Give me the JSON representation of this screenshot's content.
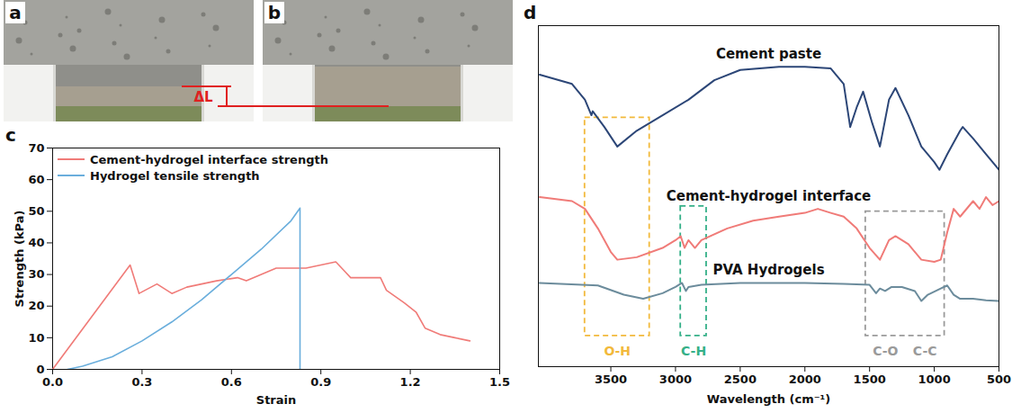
{
  "chart_data": [
    {
      "type": "line",
      "panel_label": "c",
      "x_label": "Strain",
      "y_label": "Strength (kPa)",
      "xlim": [
        0,
        1.5
      ],
      "xticks": [
        {
          "value": 0,
          "label": "0.0"
        },
        {
          "value": 0.3,
          "label": "0.3"
        },
        {
          "value": 0.6,
          "label": "0.6"
        },
        {
          "value": 0.9,
          "label": "0.9"
        },
        {
          "value": 1.2,
          "label": "1.2"
        },
        {
          "value": 1.5,
          "label": "1.5"
        }
      ],
      "ylim": [
        0,
        70
      ],
      "yticks": [
        0,
        10,
        20,
        30,
        40,
        50,
        60,
        70
      ],
      "legend": "top-left",
      "series": [
        {
          "name": "Cement-hydrogel interface strength",
          "color": "#f07b78",
          "x": [
            0,
            0.26,
            0.29,
            0.35,
            0.4,
            0.45,
            0.55,
            0.62,
            0.65,
            0.7,
            0.75,
            0.8,
            0.85,
            0.9,
            0.95,
            0.98,
            1.0,
            1.05,
            1.1,
            1.12,
            1.18,
            1.22,
            1.25,
            1.3,
            1.35,
            1.4
          ],
          "values": [
            0,
            33,
            24,
            27,
            24,
            26,
            28,
            29,
            28,
            30,
            32,
            32,
            32,
            33,
            34,
            31,
            29,
            29,
            29,
            25,
            21,
            18,
            13,
            11,
            10,
            9
          ]
        },
        {
          "name": "Hydrogel tensile strength",
          "color": "#6aaedc",
          "x": [
            0.05,
            0.1,
            0.2,
            0.3,
            0.4,
            0.5,
            0.6,
            0.7,
            0.8,
            0.83,
            0.83
          ],
          "values": [
            0,
            1,
            4,
            9,
            15,
            22,
            30,
            38,
            47,
            51,
            0
          ]
        }
      ]
    },
    {
      "type": "line",
      "panel_label": "d",
      "x_label": "Wavelength (cm⁻¹)",
      "xlim": [
        4060,
        500
      ],
      "xticks": [
        3500,
        3000,
        2500,
        2000,
        1500,
        1000,
        500
      ],
      "ylim": [
        0,
        110
      ],
      "tick_labels": "x",
      "series": [
        {
          "name": "Cement paste",
          "color": "#2c4677",
          "x": [
            4050,
            3800,
            3700,
            3650,
            3640,
            3550,
            3450,
            3300,
            3100,
            2900,
            2700,
            2500,
            2200,
            2000,
            1800,
            1700,
            1650,
            1600,
            1550,
            1480,
            1420,
            1350,
            1300,
            1200,
            1100,
            1000,
            960,
            900,
            800,
            780,
            700,
            600,
            500
          ],
          "values": [
            94.2,
            91.2,
            86.1,
            81.1,
            82.4,
            77.3,
            71.0,
            76.1,
            81.1,
            86.1,
            92.4,
            95.7,
            96.7,
            96.7,
            96.2,
            91.2,
            77.3,
            83.6,
            88.7,
            78.6,
            71.0,
            86.1,
            89.9,
            81.1,
            71.0,
            66.0,
            63.5,
            68.5,
            76.1,
            77.3,
            73.6,
            68.5,
            63.5
          ]
        },
        {
          "name": "Cement-hydrogel interface",
          "color": "#f07b78",
          "x": [
            4050,
            3800,
            3700,
            3600,
            3500,
            3450,
            3300,
            3100,
            3000,
            2960,
            2930,
            2900,
            2850,
            2800,
            2600,
            2400,
            2200,
            2000,
            1900,
            1800,
            1700,
            1600,
            1500,
            1420,
            1350,
            1300,
            1200,
            1100,
            1000,
            950,
            900,
            850,
            800,
            700,
            650,
            600,
            550,
            500
          ],
          "values": [
            54.7,
            53.4,
            50.9,
            44.6,
            37.0,
            34.5,
            35.3,
            38.3,
            40.8,
            42.1,
            38.3,
            40.8,
            38.3,
            40.8,
            44.6,
            47.1,
            48.4,
            49.6,
            50.9,
            49.6,
            48.4,
            44.6,
            38.3,
            34.5,
            40.8,
            42.1,
            39.5,
            34.5,
            33.8,
            34.5,
            43.3,
            50.9,
            48.4,
            53.4,
            50.9,
            54.7,
            52.1,
            53.4
          ]
        },
        {
          "name": "PVA Hydrogels",
          "color": "#6c8c9c",
          "x": [
            4050,
            3600,
            3400,
            3250,
            3100,
            3000,
            2950,
            2920,
            2900,
            2800,
            2500,
            2000,
            1700,
            1500,
            1450,
            1420,
            1380,
            1330,
            1250,
            1150,
            1100,
            1050,
            950,
            900,
            850,
            800,
            700,
            600,
            500
          ],
          "values": [
            27.0,
            26.2,
            23.2,
            21.9,
            23.7,
            25.7,
            27.0,
            24.4,
            25.7,
            26.4,
            27.0,
            27.0,
            26.7,
            26.4,
            23.7,
            25.2,
            24.4,
            25.7,
            25.7,
            24.4,
            21.2,
            23.2,
            25.2,
            26.2,
            23.2,
            21.9,
            21.9,
            21.4,
            21.2
          ]
        }
      ],
      "annotations": [
        {
          "labels": [
            "O-H"
          ],
          "x": [
            3700,
            3200
          ],
          "color": "#f2b93b"
        },
        {
          "labels": [
            "C-H"
          ],
          "x": [
            2960,
            2760
          ],
          "color": "#35b088"
        },
        {
          "labels": [
            "C-O",
            "C-C"
          ],
          "x": [
            1530,
            920
          ],
          "color": "#9a9a9a"
        }
      ]
    }
  ],
  "photos": {
    "panels": [
      "a",
      "b"
    ],
    "annotation": "ΔL"
  }
}
